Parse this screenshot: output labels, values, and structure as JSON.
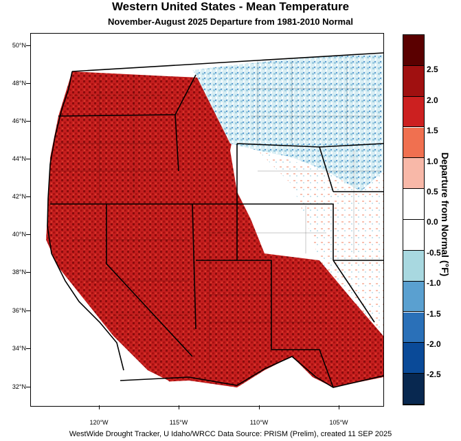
{
  "title": "Western United States - Mean Temperature",
  "subtitle": "November-August 2025  Departure from 1981-2010 Normal",
  "footer": "WestWide Drought Tracker, U Idaho/WRCC Data Source: PRISM (Prelim), created 11 SEP 2025",
  "colorbar": {
    "title": "Departure from Normal (°F)",
    "labels": [
      "2.5",
      "2.0",
      "1.5",
      "1.0",
      "0.5",
      "0.0",
      "-0.5",
      "-1.0",
      "-1.5",
      "-2.0",
      "-2.5"
    ],
    "colors": [
      "#5a0000",
      "#a01010",
      "#cc2020",
      "#f07050",
      "#f8b8a8",
      "#ffffff",
      "#ffffff",
      "#a8d8e0",
      "#5aa0d0",
      "#2a70b8",
      "#0a4a98",
      "#082850"
    ]
  },
  "map": {
    "lat_labels": [
      "50°N",
      "48°N",
      "46°N",
      "44°N",
      "42°N",
      "40°N",
      "38°N",
      "36°N",
      "34°N",
      "32°N"
    ],
    "lon_labels": [
      "120°W",
      "115°W",
      "110°W",
      "105°W"
    ],
    "colors": {
      "dark_red": "#8a0c0c",
      "red": "#c41e1e",
      "orange_red": "#e85a3a",
      "light_red": "#f5a090",
      "white": "#ffffff",
      "light_blue": "#b8dce8",
      "blue": "#4a8cc8"
    }
  }
}
